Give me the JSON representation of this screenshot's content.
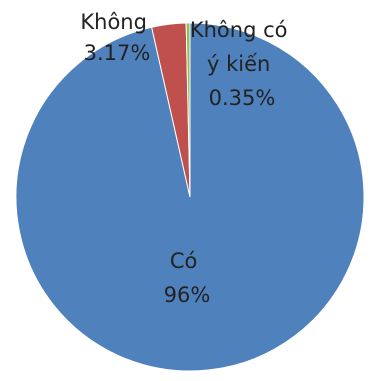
{
  "chart_data": {
    "type": "pie",
    "title": "",
    "slices": [
      {
        "label": "Có",
        "value": 96,
        "value_label": "96%",
        "color": "#4f81bd"
      },
      {
        "label": "Không",
        "value": 3.17,
        "value_label": "3.17%",
        "color": "#c0504d"
      },
      {
        "label": "Không có ý kiến",
        "label_lines": [
          "Không có",
          "ý kiến"
        ],
        "value": 0.35,
        "value_label": "0.35%",
        "color": "#9bbb59"
      }
    ],
    "start_angle_deg": 0,
    "direction": "counterclockwise",
    "legend": "none",
    "data_labels": "category-and-percent"
  }
}
